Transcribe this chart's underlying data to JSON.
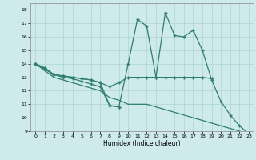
{
  "xlabel": "Humidex (Indice chaleur)",
  "bg_color": "#ceeaea",
  "line_color": "#2e7d6e",
  "grid_color": "#aed4d4",
  "xlim": [
    -0.5,
    23.5
  ],
  "ylim": [
    9,
    18.5
  ],
  "xticks": [
    0,
    1,
    2,
    3,
    4,
    5,
    6,
    7,
    8,
    9,
    10,
    11,
    12,
    13,
    14,
    15,
    16,
    17,
    18,
    19,
    20,
    21,
    22,
    23
  ],
  "yticks": [
    9,
    10,
    11,
    12,
    13,
    14,
    15,
    16,
    17,
    18
  ],
  "line1_x": [
    0,
    1,
    2,
    3,
    4,
    5,
    6,
    7,
    8,
    9,
    10,
    11,
    12,
    13,
    14,
    15,
    16,
    17,
    18,
    19,
    20,
    21,
    22,
    23
  ],
  "line1_y": [
    14.0,
    13.7,
    13.2,
    13.1,
    13.0,
    12.9,
    12.8,
    12.6,
    10.9,
    10.8,
    14.0,
    17.3,
    16.8,
    13.0,
    17.8,
    16.1,
    16.0,
    16.5,
    15.0,
    12.8,
    11.2,
    10.2,
    9.4,
    8.8
  ],
  "line2_x": [
    0,
    1,
    2,
    3,
    4,
    5,
    6,
    7,
    8,
    9,
    10,
    11,
    12,
    13,
    14,
    15,
    16,
    17,
    18,
    19
  ],
  "line2_y": [
    14.0,
    13.7,
    13.2,
    13.1,
    13.0,
    12.9,
    12.8,
    12.6,
    12.3,
    12.6,
    13.0,
    13.0,
    13.0,
    13.0,
    13.0,
    13.0,
    13.0,
    13.0,
    13.0,
    12.9
  ],
  "line3_x": [
    0,
    1,
    2,
    3,
    4,
    5,
    6,
    7,
    8,
    9,
    10,
    11,
    12,
    13,
    14,
    15,
    16,
    17,
    18,
    19,
    20,
    21,
    22,
    23
  ],
  "line3_y": [
    14.0,
    13.5,
    13.0,
    12.8,
    12.6,
    12.4,
    12.2,
    12.0,
    11.5,
    11.3,
    11.0,
    11.0,
    11.0,
    10.8,
    10.6,
    10.4,
    10.2,
    10.0,
    9.8,
    9.6,
    9.4,
    9.2,
    9.0,
    8.8
  ],
  "line4_x": [
    0,
    1,
    2,
    3,
    4,
    5,
    6,
    7,
    8,
    9
  ],
  "line4_y": [
    14.0,
    13.6,
    13.2,
    13.0,
    12.9,
    12.7,
    12.5,
    12.3,
    10.9,
    10.8
  ]
}
